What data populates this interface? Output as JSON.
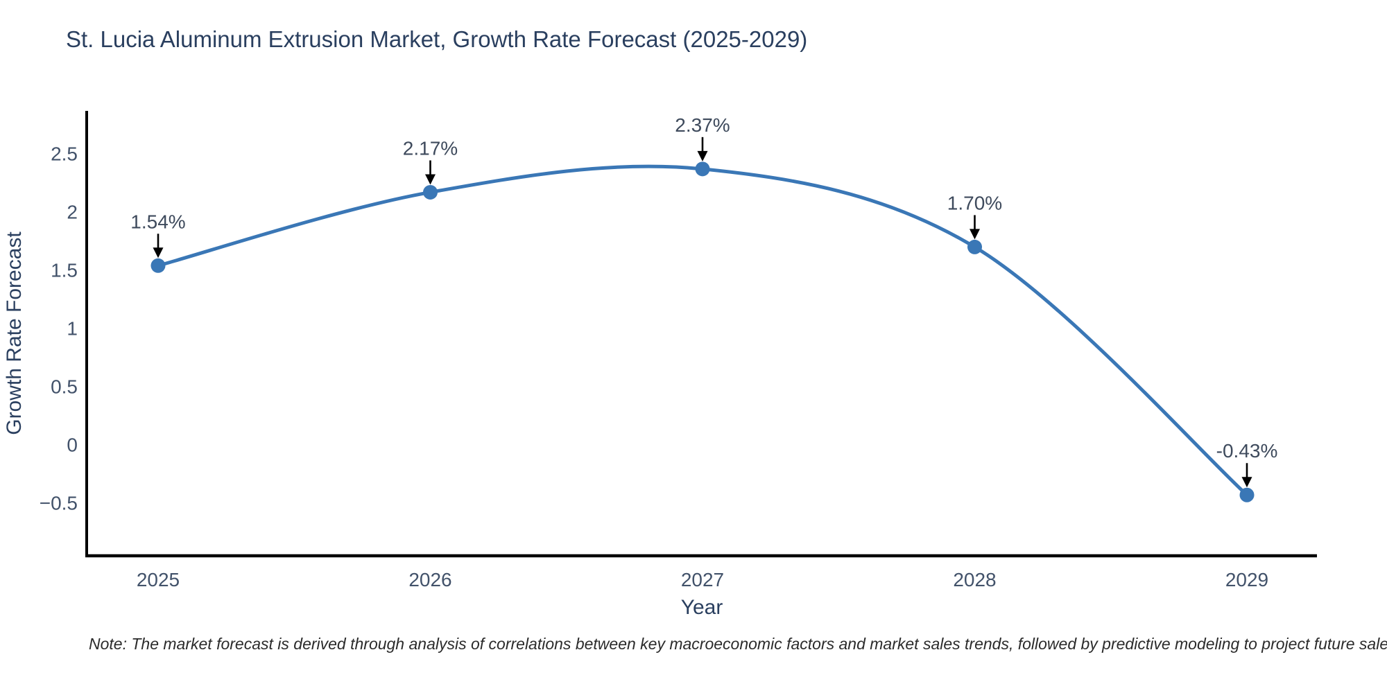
{
  "title": "St. Lucia Aluminum Extrusion Market, Growth Rate Forecast (2025-2029)",
  "note": "Note: The market forecast is derived through analysis of correlations between key macroeconomic factors and market sales trends, followed by predictive modeling to project future sales.",
  "colors": {
    "line": "#3a77b6",
    "marker": "#3a77b6",
    "axis": "#000000",
    "arrow": "#000000",
    "title_text": "#2a3f5f",
    "tick_text": "#42526a",
    "background": "#ffffff"
  },
  "chart_data": {
    "type": "line",
    "title": "St. Lucia Aluminum Extrusion Market, Growth Rate Forecast (2025-2029)",
    "x": [
      2025,
      2026,
      2027,
      2028,
      2029
    ],
    "y": [
      1.54,
      2.17,
      2.37,
      1.7,
      -0.43
    ],
    "series": [
      {
        "name": "Growth Rate Forecast",
        "values": [
          1.54,
          2.17,
          2.37,
          1.7,
          -0.43
        ]
      }
    ],
    "point_labels": [
      "1.54%",
      "2.17%",
      "2.37%",
      "1.70%",
      "-0.43%"
    ],
    "xlabel": "Year",
    "ylabel": "Growth Rate Forecast",
    "xtick_labels": [
      "2025",
      "2026",
      "2027",
      "2028",
      "2029"
    ],
    "yticks": [
      2.5,
      2,
      1.5,
      1,
      0.5,
      0,
      -0.5
    ],
    "ytick_labels": [
      "2.5",
      "2",
      "1.5",
      "1",
      "0.5",
      "0",
      "−0.5"
    ],
    "ylim": [
      -0.95,
      2.87
    ],
    "line_shape": "spline",
    "grid": false,
    "legend_position": "none",
    "annotation_arrows": "down-arrow-to-point"
  }
}
